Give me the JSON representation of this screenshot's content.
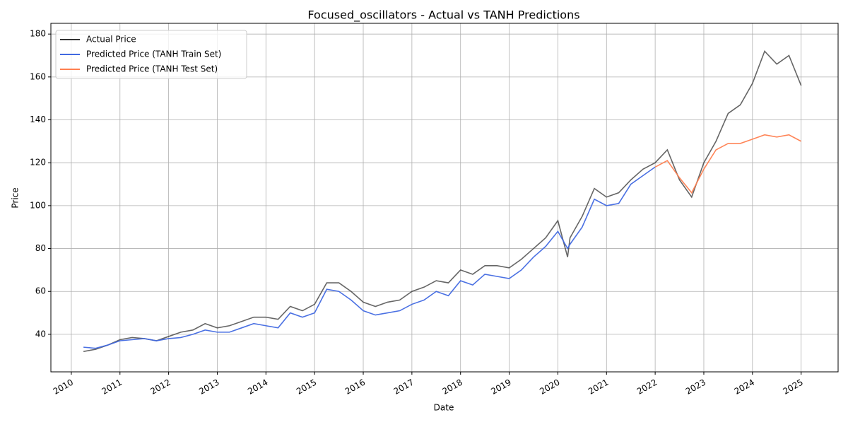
{
  "chart_data": {
    "type": "line",
    "title": "Focused_oscillators - Actual vs TANH Predictions",
    "x_label": "Date",
    "y_label": "Price",
    "x": [
      2010.25,
      2010.5,
      2010.75,
      2011,
      2011.25,
      2011.5,
      2011.75,
      2012,
      2012.25,
      2012.5,
      2012.75,
      2013,
      2013.25,
      2013.5,
      2013.75,
      2014,
      2014.25,
      2014.5,
      2014.75,
      2015,
      2015.25,
      2015.5,
      2015.75,
      2016,
      2016.25,
      2016.5,
      2016.75,
      2017,
      2017.25,
      2017.5,
      2017.75,
      2018,
      2018.25,
      2018.5,
      2018.75,
      2019,
      2019.25,
      2019.5,
      2019.75,
      2020,
      2020.2,
      2020.25,
      2020.5,
      2020.75,
      2021,
      2021.25,
      2021.5,
      2021.75,
      2022,
      2022.25,
      2022.5,
      2022.75,
      2023,
      2023.25,
      2023.5,
      2023.75,
      2024,
      2024.25,
      2024.5,
      2024.75,
      2025
    ],
    "series": [
      {
        "name": "Actual Price",
        "color": "#333333",
        "values": [
          32,
          33,
          35,
          37.5,
          38.5,
          38,
          37,
          39,
          41,
          42,
          45,
          43,
          44,
          46,
          48,
          48,
          47,
          53,
          51,
          54,
          64,
          64,
          60,
          55,
          53,
          55,
          56,
          60,
          62,
          65,
          64,
          70,
          68,
          72,
          72,
          71,
          75,
          80,
          85,
          93,
          76,
          85,
          95,
          108,
          104,
          106,
          112,
          117,
          120,
          126,
          112,
          104,
          120,
          130,
          143,
          147,
          157,
          172,
          166,
          170,
          156
        ]
      },
      {
        "name": "Predicted Price (TANH Train Set)",
        "color": "#4169e1",
        "values": [
          34,
          33.5,
          35,
          37,
          37.5,
          38,
          37,
          38,
          38.5,
          40,
          42,
          41,
          41,
          43,
          45,
          44,
          43,
          50,
          48,
          50,
          61,
          60,
          56,
          51,
          49,
          50,
          51,
          54,
          56,
          60,
          58,
          65,
          63,
          68,
          67,
          66,
          70,
          76,
          81,
          88,
          80,
          82,
          90,
          103,
          100,
          101,
          110,
          114,
          118,
          null,
          null,
          null,
          null,
          null,
          null,
          null,
          null,
          null,
          null,
          null,
          null
        ]
      },
      {
        "name": "Predicted Price (TANH Test Set)",
        "color": "#ff7f50",
        "values": [
          null,
          null,
          null,
          null,
          null,
          null,
          null,
          null,
          null,
          null,
          null,
          null,
          null,
          null,
          null,
          null,
          null,
          null,
          null,
          null,
          null,
          null,
          null,
          null,
          null,
          null,
          null,
          null,
          null,
          null,
          null,
          null,
          null,
          null,
          null,
          null,
          null,
          null,
          null,
          null,
          null,
          null,
          null,
          null,
          null,
          null,
          null,
          null,
          118,
          121,
          113,
          106,
          117,
          126,
          129,
          129,
          131,
          133,
          132,
          133,
          130
        ]
      }
    ],
    "xlim": [
      2009.58,
      2025.76
    ],
    "xticks": [
      2010,
      2011,
      2012,
      2013,
      2014,
      2015,
      2016,
      2017,
      2018,
      2019,
      2020,
      2021,
      2022,
      2023,
      2024,
      2025
    ],
    "ylim": [
      22.5,
      185
    ],
    "yticks": [
      40,
      60,
      80,
      100,
      120,
      140,
      160,
      180
    ],
    "grid": true,
    "legend": "upper left"
  }
}
